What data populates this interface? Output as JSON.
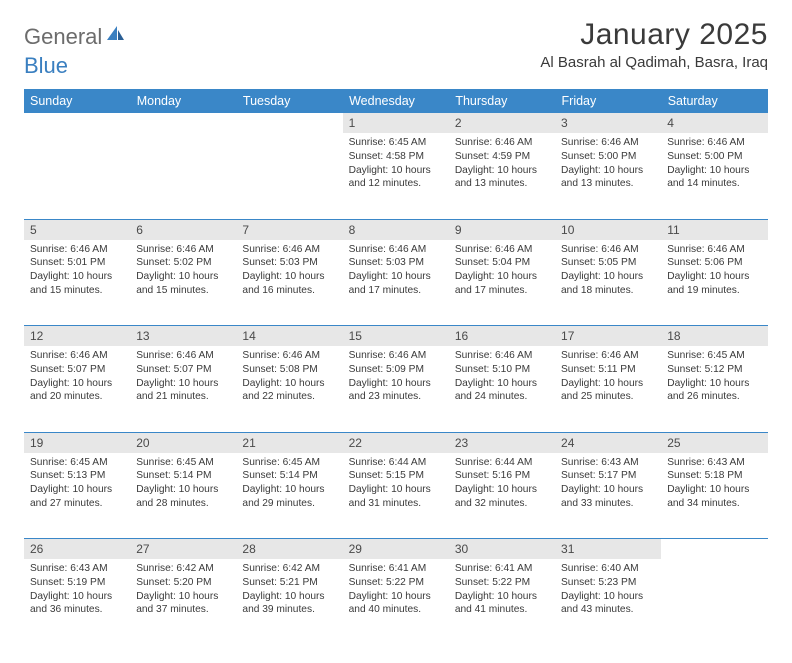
{
  "logo": {
    "part1": "General",
    "part2": "Blue"
  },
  "title": "January 2025",
  "location": "Al Basrah al Qadimah, Basra, Iraq",
  "colors": {
    "header_bg": "#3a87c8",
    "header_text": "#ffffff",
    "daynum_bg": "#e7e7e7",
    "border": "#3a87c8",
    "logo_gray": "#6c6c6c",
    "logo_blue": "#3a7fc0"
  },
  "weekdays": [
    "Sunday",
    "Monday",
    "Tuesday",
    "Wednesday",
    "Thursday",
    "Friday",
    "Saturday"
  ],
  "weeks": [
    [
      null,
      null,
      null,
      {
        "n": "1",
        "sunrise": "6:45 AM",
        "sunset": "4:58 PM",
        "daylight": "10 hours and 12 minutes."
      },
      {
        "n": "2",
        "sunrise": "6:46 AM",
        "sunset": "4:59 PM",
        "daylight": "10 hours and 13 minutes."
      },
      {
        "n": "3",
        "sunrise": "6:46 AM",
        "sunset": "5:00 PM",
        "daylight": "10 hours and 13 minutes."
      },
      {
        "n": "4",
        "sunrise": "6:46 AM",
        "sunset": "5:00 PM",
        "daylight": "10 hours and 14 minutes."
      }
    ],
    [
      {
        "n": "5",
        "sunrise": "6:46 AM",
        "sunset": "5:01 PM",
        "daylight": "10 hours and 15 minutes."
      },
      {
        "n": "6",
        "sunrise": "6:46 AM",
        "sunset": "5:02 PM",
        "daylight": "10 hours and 15 minutes."
      },
      {
        "n": "7",
        "sunrise": "6:46 AM",
        "sunset": "5:03 PM",
        "daylight": "10 hours and 16 minutes."
      },
      {
        "n": "8",
        "sunrise": "6:46 AM",
        "sunset": "5:03 PM",
        "daylight": "10 hours and 17 minutes."
      },
      {
        "n": "9",
        "sunrise": "6:46 AM",
        "sunset": "5:04 PM",
        "daylight": "10 hours and 17 minutes."
      },
      {
        "n": "10",
        "sunrise": "6:46 AM",
        "sunset": "5:05 PM",
        "daylight": "10 hours and 18 minutes."
      },
      {
        "n": "11",
        "sunrise": "6:46 AM",
        "sunset": "5:06 PM",
        "daylight": "10 hours and 19 minutes."
      }
    ],
    [
      {
        "n": "12",
        "sunrise": "6:46 AM",
        "sunset": "5:07 PM",
        "daylight": "10 hours and 20 minutes."
      },
      {
        "n": "13",
        "sunrise": "6:46 AM",
        "sunset": "5:07 PM",
        "daylight": "10 hours and 21 minutes."
      },
      {
        "n": "14",
        "sunrise": "6:46 AM",
        "sunset": "5:08 PM",
        "daylight": "10 hours and 22 minutes."
      },
      {
        "n": "15",
        "sunrise": "6:46 AM",
        "sunset": "5:09 PM",
        "daylight": "10 hours and 23 minutes."
      },
      {
        "n": "16",
        "sunrise": "6:46 AM",
        "sunset": "5:10 PM",
        "daylight": "10 hours and 24 minutes."
      },
      {
        "n": "17",
        "sunrise": "6:46 AM",
        "sunset": "5:11 PM",
        "daylight": "10 hours and 25 minutes."
      },
      {
        "n": "18",
        "sunrise": "6:45 AM",
        "sunset": "5:12 PM",
        "daylight": "10 hours and 26 minutes."
      }
    ],
    [
      {
        "n": "19",
        "sunrise": "6:45 AM",
        "sunset": "5:13 PM",
        "daylight": "10 hours and 27 minutes."
      },
      {
        "n": "20",
        "sunrise": "6:45 AM",
        "sunset": "5:14 PM",
        "daylight": "10 hours and 28 minutes."
      },
      {
        "n": "21",
        "sunrise": "6:45 AM",
        "sunset": "5:14 PM",
        "daylight": "10 hours and 29 minutes."
      },
      {
        "n": "22",
        "sunrise": "6:44 AM",
        "sunset": "5:15 PM",
        "daylight": "10 hours and 31 minutes."
      },
      {
        "n": "23",
        "sunrise": "6:44 AM",
        "sunset": "5:16 PM",
        "daylight": "10 hours and 32 minutes."
      },
      {
        "n": "24",
        "sunrise": "6:43 AM",
        "sunset": "5:17 PM",
        "daylight": "10 hours and 33 minutes."
      },
      {
        "n": "25",
        "sunrise": "6:43 AM",
        "sunset": "5:18 PM",
        "daylight": "10 hours and 34 minutes."
      }
    ],
    [
      {
        "n": "26",
        "sunrise": "6:43 AM",
        "sunset": "5:19 PM",
        "daylight": "10 hours and 36 minutes."
      },
      {
        "n": "27",
        "sunrise": "6:42 AM",
        "sunset": "5:20 PM",
        "daylight": "10 hours and 37 minutes."
      },
      {
        "n": "28",
        "sunrise": "6:42 AM",
        "sunset": "5:21 PM",
        "daylight": "10 hours and 39 minutes."
      },
      {
        "n": "29",
        "sunrise": "6:41 AM",
        "sunset": "5:22 PM",
        "daylight": "10 hours and 40 minutes."
      },
      {
        "n": "30",
        "sunrise": "6:41 AM",
        "sunset": "5:22 PM",
        "daylight": "10 hours and 41 minutes."
      },
      {
        "n": "31",
        "sunrise": "6:40 AM",
        "sunset": "5:23 PM",
        "daylight": "10 hours and 43 minutes."
      },
      null
    ]
  ],
  "labels": {
    "sunrise": "Sunrise:",
    "sunset": "Sunset:",
    "daylight": "Daylight:"
  }
}
